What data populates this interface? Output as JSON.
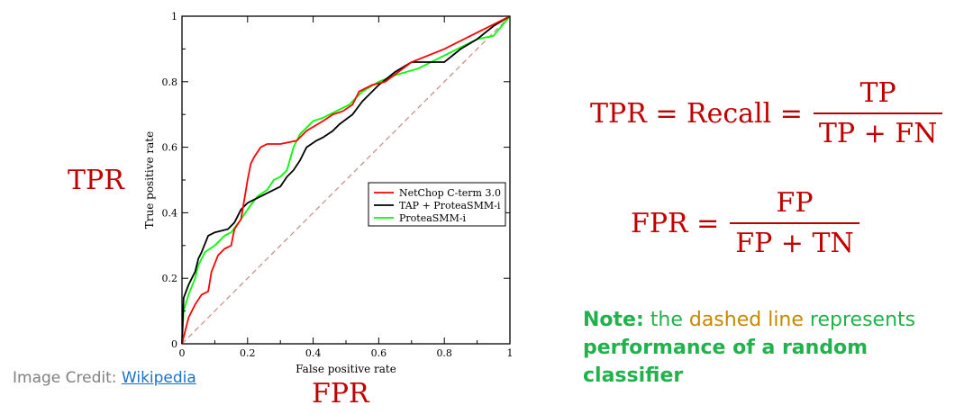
{
  "chart_data": {
    "type": "line",
    "title": "",
    "xlabel": "False positive rate",
    "ylabel": "True positive rate",
    "xlim": [
      0,
      1
    ],
    "ylim": [
      0,
      1
    ],
    "x_ticks": [
      "0",
      "0.2",
      "0.4",
      "0.6",
      "0.8",
      "1"
    ],
    "y_ticks": [
      "0",
      "0.2",
      "0.4",
      "0.6",
      "0.8",
      "1"
    ],
    "grid": false,
    "legend_position": "center-right",
    "series": [
      {
        "name": "NetChop C-term 3.0",
        "color": "#ff0000",
        "points": [
          [
            0,
            0
          ],
          [
            0.02,
            0.08
          ],
          [
            0.04,
            0.12
          ],
          [
            0.06,
            0.15
          ],
          [
            0.08,
            0.16
          ],
          [
            0.09,
            0.22
          ],
          [
            0.11,
            0.27
          ],
          [
            0.13,
            0.29
          ],
          [
            0.15,
            0.3
          ],
          [
            0.16,
            0.35
          ],
          [
            0.18,
            0.38
          ],
          [
            0.19,
            0.44
          ],
          [
            0.2,
            0.5
          ],
          [
            0.21,
            0.55
          ],
          [
            0.22,
            0.57
          ],
          [
            0.24,
            0.6
          ],
          [
            0.26,
            0.61
          ],
          [
            0.3,
            0.61
          ],
          [
            0.35,
            0.62
          ],
          [
            0.38,
            0.65
          ],
          [
            0.43,
            0.68
          ],
          [
            0.46,
            0.7
          ],
          [
            0.49,
            0.71
          ],
          [
            0.52,
            0.73
          ],
          [
            0.54,
            0.77
          ],
          [
            0.58,
            0.79
          ],
          [
            0.62,
            0.8
          ],
          [
            0.66,
            0.83
          ],
          [
            0.7,
            0.86
          ],
          [
            0.8,
            0.9
          ],
          [
            0.9,
            0.95
          ],
          [
            1,
            1
          ]
        ]
      },
      {
        "name": "TAP + ProteaSMM-i",
        "color": "#000000",
        "points": [
          [
            0,
            0
          ],
          [
            0.005,
            0.14
          ],
          [
            0.02,
            0.18
          ],
          [
            0.03,
            0.2
          ],
          [
            0.04,
            0.22
          ],
          [
            0.05,
            0.26
          ],
          [
            0.06,
            0.28
          ],
          [
            0.08,
            0.33
          ],
          [
            0.1,
            0.34
          ],
          [
            0.14,
            0.35
          ],
          [
            0.16,
            0.37
          ],
          [
            0.18,
            0.41
          ],
          [
            0.2,
            0.43
          ],
          [
            0.22,
            0.44
          ],
          [
            0.24,
            0.45
          ],
          [
            0.26,
            0.46
          ],
          [
            0.28,
            0.47
          ],
          [
            0.3,
            0.48
          ],
          [
            0.32,
            0.51
          ],
          [
            0.34,
            0.53
          ],
          [
            0.36,
            0.56
          ],
          [
            0.38,
            0.6
          ],
          [
            0.41,
            0.62
          ],
          [
            0.43,
            0.63
          ],
          [
            0.46,
            0.65
          ],
          [
            0.48,
            0.67
          ],
          [
            0.52,
            0.7
          ],
          [
            0.55,
            0.74
          ],
          [
            0.6,
            0.79
          ],
          [
            0.65,
            0.83
          ],
          [
            0.7,
            0.86
          ],
          [
            0.8,
            0.86
          ],
          [
            0.85,
            0.9
          ],
          [
            0.9,
            0.93
          ],
          [
            0.95,
            0.97
          ],
          [
            1,
            1
          ]
        ]
      },
      {
        "name": "ProteaSMM-i",
        "color": "#00ff00",
        "points": [
          [
            0,
            0
          ],
          [
            0.005,
            0.1
          ],
          [
            0.02,
            0.15
          ],
          [
            0.04,
            0.2
          ],
          [
            0.05,
            0.24
          ],
          [
            0.07,
            0.28
          ],
          [
            0.1,
            0.3
          ],
          [
            0.13,
            0.33
          ],
          [
            0.15,
            0.34
          ],
          [
            0.18,
            0.38
          ],
          [
            0.2,
            0.41
          ],
          [
            0.23,
            0.45
          ],
          [
            0.26,
            0.47
          ],
          [
            0.28,
            0.5
          ],
          [
            0.3,
            0.51
          ],
          [
            0.32,
            0.53
          ],
          [
            0.34,
            0.6
          ],
          [
            0.36,
            0.64
          ],
          [
            0.38,
            0.66
          ],
          [
            0.4,
            0.68
          ],
          [
            0.43,
            0.69
          ],
          [
            0.47,
            0.71
          ],
          [
            0.51,
            0.73
          ],
          [
            0.55,
            0.77
          ],
          [
            0.6,
            0.8
          ],
          [
            0.65,
            0.82
          ],
          [
            0.72,
            0.84
          ],
          [
            0.8,
            0.88
          ],
          [
            0.9,
            0.93
          ],
          [
            0.95,
            0.94
          ],
          [
            1,
            1
          ]
        ]
      },
      {
        "name": "",
        "color": "#c89090",
        "dashed": true,
        "points": [
          [
            0,
            0
          ],
          [
            1,
            1
          ]
        ]
      }
    ]
  },
  "side_labels": {
    "y": "TPR",
    "x": "FPR"
  },
  "credit": {
    "prefix": "Image Credit: ",
    "link": "Wikipedia"
  },
  "formulas": {
    "tpr": {
      "lhs": "TPR = Recall =",
      "numerator": "TP",
      "denominator": "TP + FN"
    },
    "fpr": {
      "lhs": "FPR =",
      "numerator": "FP",
      "denominator": "FP + TN"
    }
  },
  "note": {
    "label": "Note:",
    "part1": " the ",
    "highlight": "dashed line",
    "part2": " represents ",
    "bold_end": "performance of a random classifier"
  }
}
